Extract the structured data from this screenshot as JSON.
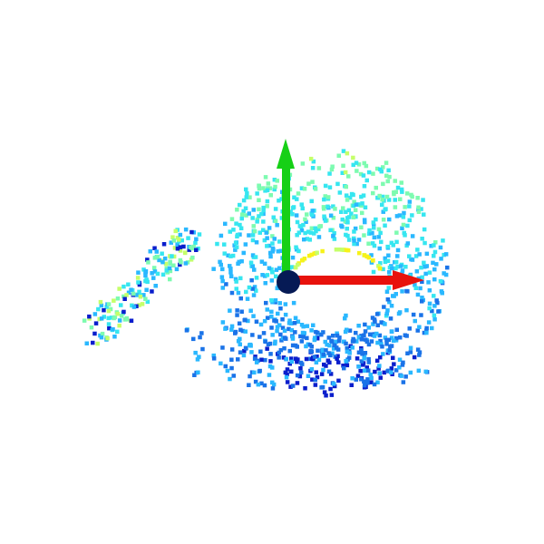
{
  "viewer": {
    "background": "#ffffff",
    "axes": {
      "x_axis_color": "#e8120c",
      "y_axis_color": "#16d016",
      "origin_color": "#061a55"
    },
    "colormap": [
      "#0a1ecc",
      "#1a73e8",
      "#2ab8ff",
      "#36e6f0",
      "#7dfbb0",
      "#c5ff6a",
      "#f7f21a"
    ]
  }
}
